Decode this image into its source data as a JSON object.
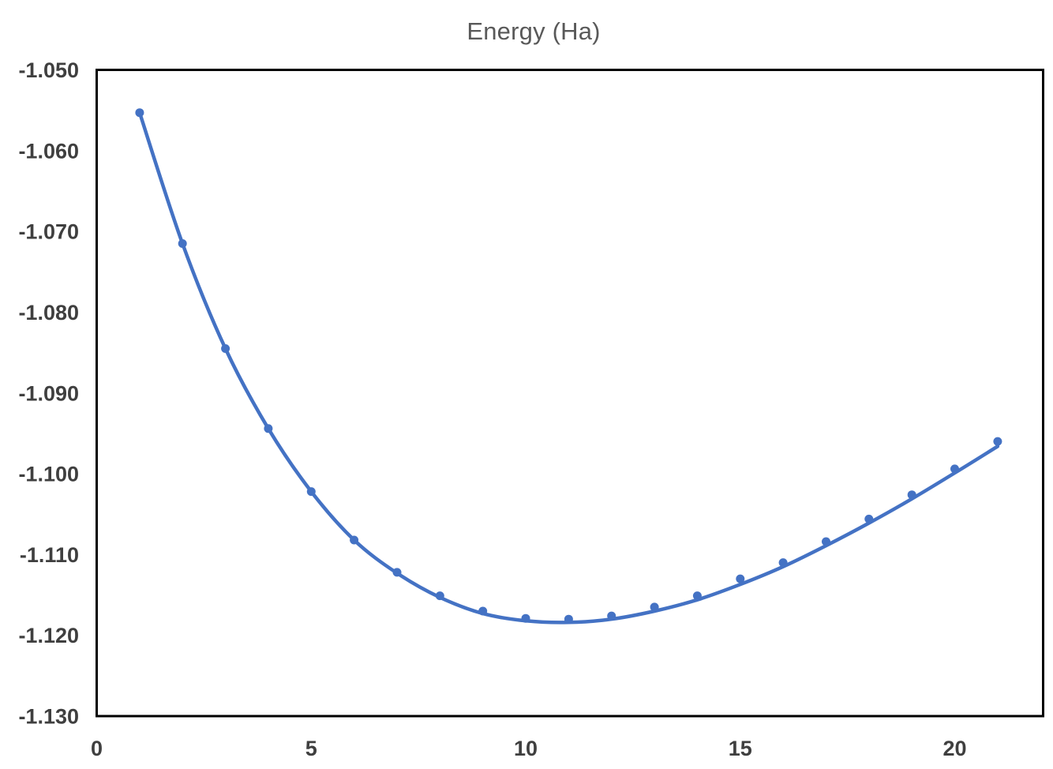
{
  "chart_title": "Energy (Ha)",
  "colors": {
    "series_blue": "#4472C4",
    "tick_label_gray": "#3F3F3F",
    "title_gray": "#595959",
    "plot_border": "#000000",
    "background": "#FFFFFF"
  },
  "chart_data": {
    "type": "scatter",
    "title": "Energy (Ha)",
    "xlabel": "",
    "ylabel": "",
    "grid": false,
    "legend": "none",
    "xlim": [
      0,
      22.06
    ],
    "ylim": [
      -1.13,
      -1.05
    ],
    "x_ticks": [
      0,
      5,
      10,
      15,
      20
    ],
    "y_ticks": [
      -1.05,
      -1.06,
      -1.07,
      -1.08,
      -1.09,
      -1.1,
      -1.11,
      -1.12,
      -1.13
    ],
    "y_tick_decimals": 3,
    "x": [
      1,
      2,
      3,
      4,
      5,
      6,
      7,
      8,
      9,
      10,
      11,
      12,
      13,
      14,
      15,
      16,
      17,
      18,
      19,
      20,
      21
    ],
    "series": [
      {
        "name": "energy-data-points",
        "style": "scatter-dots",
        "values": [
          -1.0553,
          -1.0715,
          -1.0845,
          -1.0944,
          -1.1022,
          -1.1082,
          -1.1122,
          -1.1151,
          -1.117,
          -1.1179,
          -1.118,
          -1.1176,
          -1.1165,
          -1.1151,
          -1.113,
          -1.111,
          -1.1084,
          -1.1056,
          -1.1026,
          -1.0994,
          -1.096
        ]
      },
      {
        "name": "smooth-fit-curve",
        "style": "smooth-line",
        "values": [
          -1.0553,
          -1.0715,
          -1.0845,
          -1.0944,
          -1.1022,
          -1.1082,
          -1.1123,
          -1.1153,
          -1.1173,
          -1.1182,
          -1.1184,
          -1.118,
          -1.117,
          -1.1156,
          -1.1137,
          -1.1115,
          -1.1089,
          -1.1061,
          -1.1031,
          -1.0999,
          -1.0966
        ]
      }
    ]
  }
}
